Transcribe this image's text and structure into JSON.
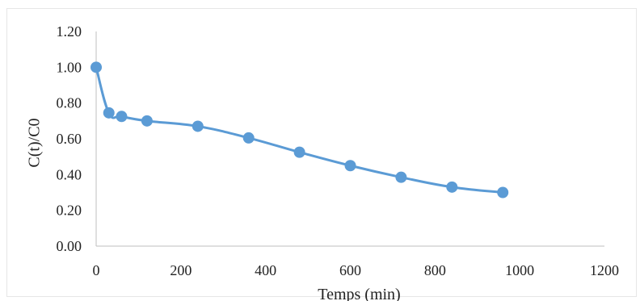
{
  "chart_data": {
    "type": "line",
    "title": "",
    "xlabel": "Temps (min)",
    "ylabel": "C(t)/C0",
    "xlim": [
      0,
      1200
    ],
    "ylim": [
      0,
      1.2
    ],
    "x_ticks": [
      "0",
      "200",
      "400",
      "600",
      "800",
      "1000",
      "1200"
    ],
    "y_ticks": [
      "0.00",
      "0.20",
      "0.40",
      "0.60",
      "0.80",
      "1.00",
      "1.20"
    ],
    "grid": false,
    "legend": "none",
    "smooth": true,
    "color": "#5b9bd5",
    "series": [
      {
        "x": [
          0,
          30,
          60,
          120,
          240,
          360,
          480,
          600,
          720,
          840,
          960
        ],
        "y": [
          1.0,
          0.745,
          0.725,
          0.7,
          0.67,
          0.605,
          0.525,
          0.45,
          0.385,
          0.33,
          0.3
        ]
      }
    ]
  }
}
